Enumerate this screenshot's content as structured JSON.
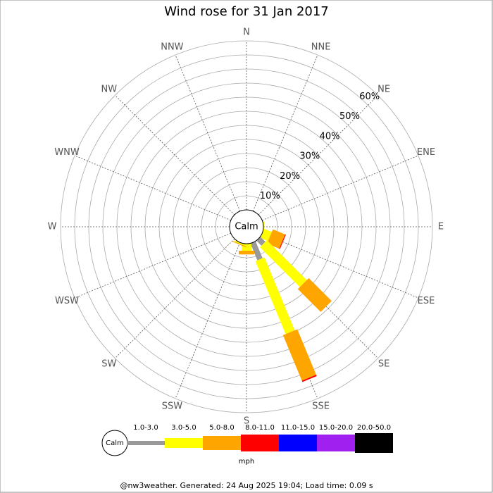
{
  "chart_data": {
    "type": "windrose",
    "title": "Wind rose for 31 Jan 2017",
    "categories": [
      "N",
      "NNE",
      "NE",
      "ENE",
      "E",
      "ESE",
      "SE",
      "SSE",
      "S",
      "SSW",
      "SW",
      "WSW",
      "W",
      "WNW",
      "NW",
      "NNW"
    ],
    "series": [
      {
        "name": "1.0-3.0",
        "color": "#999999",
        "values": [
          0,
          0,
          0,
          0,
          0,
          0,
          2.5,
          6.5,
          0,
          0,
          0,
          0,
          0,
          0,
          0,
          0
        ]
      },
      {
        "name": "3.0-5.0",
        "color": "#ffff00",
        "values": [
          0,
          0,
          0,
          0,
          0.3,
          3,
          20,
          28,
          2.5,
          0.5,
          0,
          0,
          0,
          0,
          0,
          0
        ]
      },
      {
        "name": "5.0-8.0",
        "color": "#ffa500",
        "values": [
          0,
          0,
          0,
          0,
          0,
          4.7,
          11.5,
          17.5,
          1.3,
          0.3,
          0,
          0,
          0,
          0,
          0,
          0
        ]
      },
      {
        "name": "8.0-11.0",
        "color": "#ff0000",
        "values": [
          0,
          0,
          0,
          0,
          0,
          0.3,
          0,
          0.5,
          0,
          0,
          0,
          0,
          0,
          0,
          0,
          0
        ]
      },
      {
        "name": "11.0-15.0",
        "color": "#0000ff",
        "values": [
          0,
          0,
          0,
          0,
          0,
          0,
          0,
          0,
          0,
          0,
          0,
          0,
          0,
          0,
          0,
          0
        ]
      },
      {
        "name": "15.0-20.0",
        "color": "#a020f0",
        "values": [
          0,
          0,
          0,
          0,
          0,
          0,
          0,
          0,
          0,
          0,
          0,
          0,
          0,
          0,
          0,
          0
        ]
      },
      {
        "name": "20.0-50.0",
        "color": "#000000",
        "values": [
          0,
          0,
          0,
          0,
          0,
          0,
          0,
          0,
          0,
          0,
          0,
          0,
          0,
          0,
          0,
          0
        ]
      }
    ],
    "ylim": [
      0,
      60
    ],
    "yticks": [
      {
        "value": 10,
        "label": "10%"
      },
      {
        "value": 20,
        "label": "20%"
      },
      {
        "value": 30,
        "label": "30%"
      },
      {
        "value": 40,
        "label": "40%"
      },
      {
        "value": 50,
        "label": "50%"
      },
      {
        "value": 60,
        "label": "60%"
      }
    ],
    "yminorticks": [
      5,
      15,
      25,
      35,
      45,
      55
    ],
    "calm_label": "Calm",
    "legend_unit": "mph",
    "footer": "@nw3weather. Generated: 24 Aug 2025 19:04; Load time: 0.09 s"
  }
}
